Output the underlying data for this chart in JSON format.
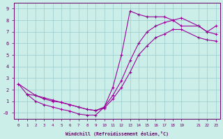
{
  "xlabel": "Windchill (Refroidissement éolien,°C)",
  "bg_color": "#cceee8",
  "line_color": "#990099",
  "grid_color": "#99cccc",
  "line1_x": [
    0,
    1,
    2,
    3,
    4,
    5,
    6,
    7,
    8,
    9,
    10,
    11,
    12,
    13,
    14,
    15,
    16,
    17,
    18,
    19,
    21,
    22,
    23
  ],
  "line1_y": [
    2.5,
    1.6,
    1.0,
    0.7,
    0.5,
    0.3,
    0.15,
    -0.1,
    -0.2,
    -0.2,
    0.5,
    2.2,
    5.0,
    8.8,
    8.5,
    8.3,
    8.3,
    8.3,
    8.0,
    7.5,
    7.5,
    7.0,
    7.5
  ],
  "line2_x": [
    0,
    2,
    3,
    4,
    5,
    6,
    7,
    8,
    9,
    10,
    11,
    12,
    13,
    14,
    15,
    16,
    17,
    18,
    19,
    21,
    22,
    23
  ],
  "line2_y": [
    2.5,
    1.5,
    1.3,
    1.1,
    0.9,
    0.7,
    0.5,
    0.3,
    0.2,
    0.5,
    1.5,
    2.8,
    4.5,
    6.0,
    7.0,
    7.5,
    7.8,
    8.0,
    8.2,
    7.5,
    7.0,
    6.8
  ],
  "line3_x": [
    1,
    2,
    3,
    4,
    5,
    6,
    7,
    8,
    9,
    10,
    11,
    12,
    13,
    14,
    15,
    16,
    17,
    18,
    19,
    21,
    22,
    23
  ],
  "line3_y": [
    1.6,
    1.5,
    1.2,
    1.0,
    0.9,
    0.7,
    0.5,
    0.3,
    0.2,
    0.4,
    1.2,
    2.2,
    3.5,
    5.0,
    5.8,
    6.5,
    6.8,
    7.2,
    7.2,
    6.5,
    6.3,
    6.2
  ],
  "xlim": [
    -0.5,
    23.5
  ],
  "ylim": [
    -0.5,
    9.5
  ],
  "xticks": [
    0,
    1,
    2,
    3,
    4,
    5,
    6,
    7,
    8,
    9,
    10,
    11,
    12,
    13,
    14,
    15,
    16,
    17,
    18,
    19,
    21,
    22,
    23
  ],
  "yticks": [
    0,
    1,
    2,
    3,
    4,
    5,
    6,
    7,
    8,
    9
  ],
  "ytick_labels": [
    "-0",
    "1",
    "2",
    "3",
    "4",
    "5",
    "6",
    "7",
    "8",
    "9"
  ]
}
